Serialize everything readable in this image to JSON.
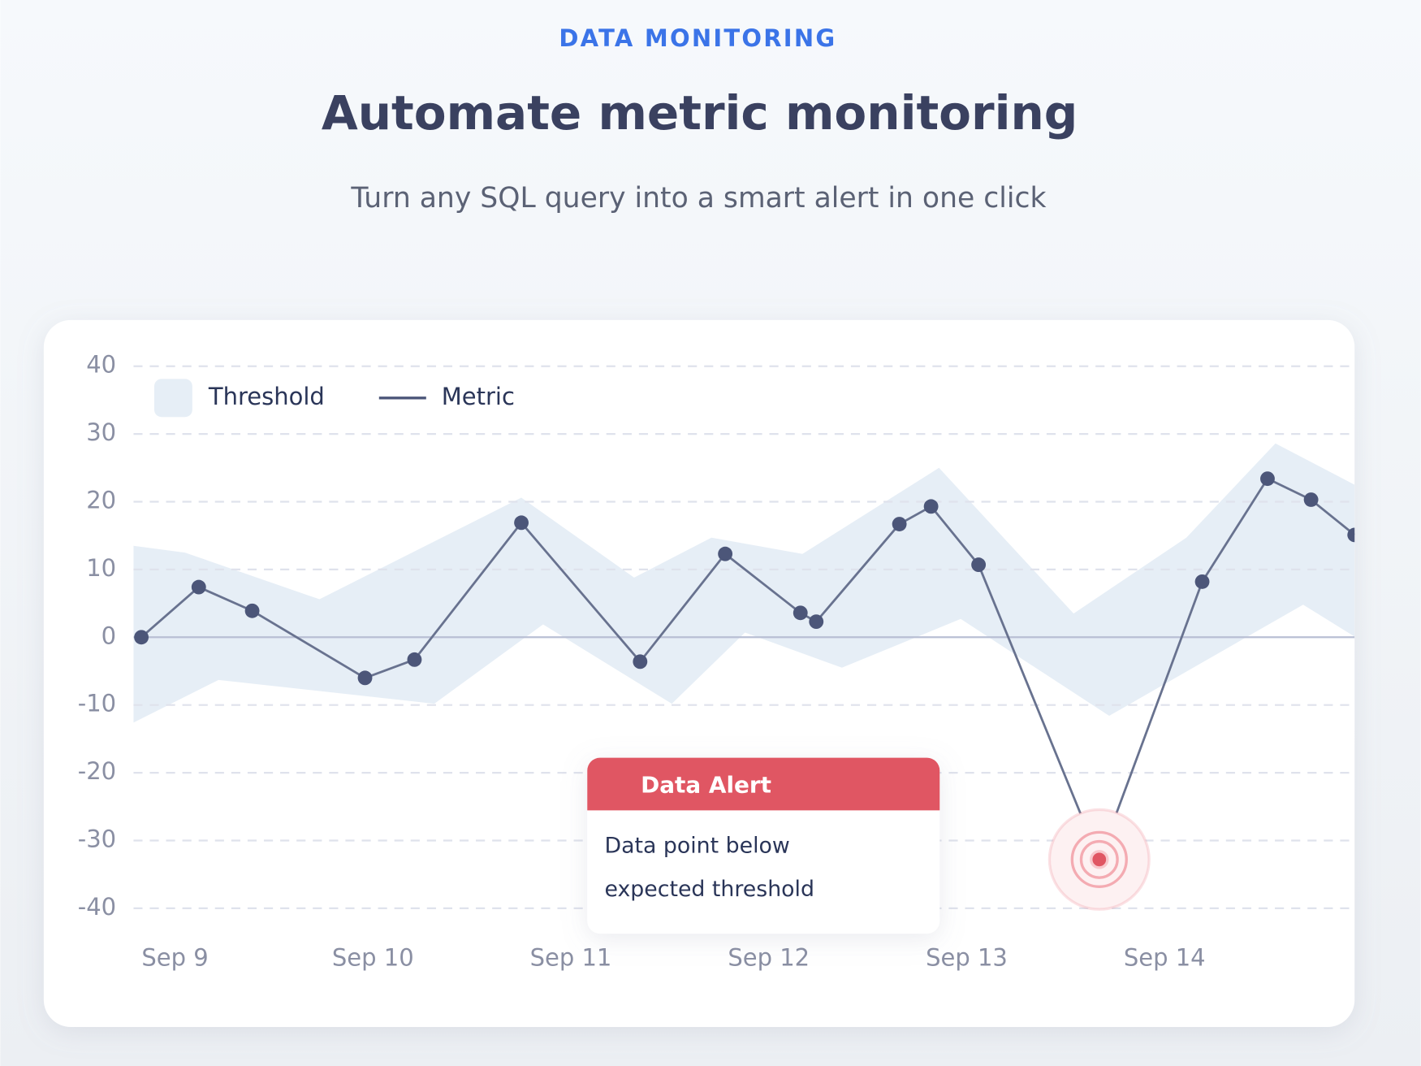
{
  "header": {
    "eyebrow": "DATA MONITORING",
    "title": "Automate metric monitoring",
    "subtitle": "Turn any SQL query into a smart alert in one click"
  },
  "chart_data": {
    "type": "line",
    "xlim": [
      8.79,
      14.96
    ],
    "xticks": [
      {
        "value": 9,
        "label": "Sep 9"
      },
      {
        "value": 10,
        "label": "Sep 10"
      },
      {
        "value": 11,
        "label": "Sep 11"
      },
      {
        "value": 12,
        "label": "Sep 12"
      },
      {
        "value": 13,
        "label": "Sep 13"
      },
      {
        "value": 14,
        "label": "Sep 14"
      }
    ],
    "ylim": [
      -40,
      40
    ],
    "yticks": [
      -40,
      -30,
      -20,
      -10,
      0,
      10,
      20,
      30,
      40
    ],
    "grid": true,
    "legend": "top-left",
    "series": [
      {
        "name": "Threshold",
        "color": "#e6eef6",
        "upper": {
          "x": [
            8.79,
            9.05,
            9.73,
            10.75,
            11.32,
            11.71,
            12.17,
            12.86,
            13.54,
            14.11,
            14.56,
            14.96
          ],
          "values": [
            13.5,
            12.5,
            5.6,
            20.6,
            8.8,
            14.7,
            12.3,
            25,
            3.5,
            14.7,
            28.6,
            22.5
          ]
        },
        "lower": {
          "x": [
            8.79,
            9.22,
            10.31,
            10.86,
            11.51,
            11.88,
            12.37,
            12.97,
            13.72,
            14.7,
            14.96
          ],
          "values": [
            -12.6,
            -6.3,
            -9.8,
            1.9,
            -9.8,
            0.7,
            -4.5,
            2.7,
            -11.6,
            4.8,
            0.1
          ]
        }
      },
      {
        "name": "Metric",
        "color": "#68728f",
        "x": [
          8.83,
          9.12,
          9.39,
          9.96,
          10.21,
          10.75,
          11.35,
          11.78,
          12.16,
          12.24,
          12.66,
          12.82,
          13.06,
          13.67,
          14.19,
          14.52,
          14.74,
          14.96
        ],
        "values": [
          0,
          7.4,
          3.9,
          -6,
          -3.3,
          16.9,
          -3.6,
          12.3,
          3.6,
          2.3,
          16.7,
          19.3,
          10.7,
          -32.8,
          8.2,
          23.4,
          20.3,
          15.1
        ]
      }
    ],
    "annotation": {
      "title": "Data Alert",
      "lines": [
        "Data point below",
        "expected threshold"
      ]
    }
  }
}
